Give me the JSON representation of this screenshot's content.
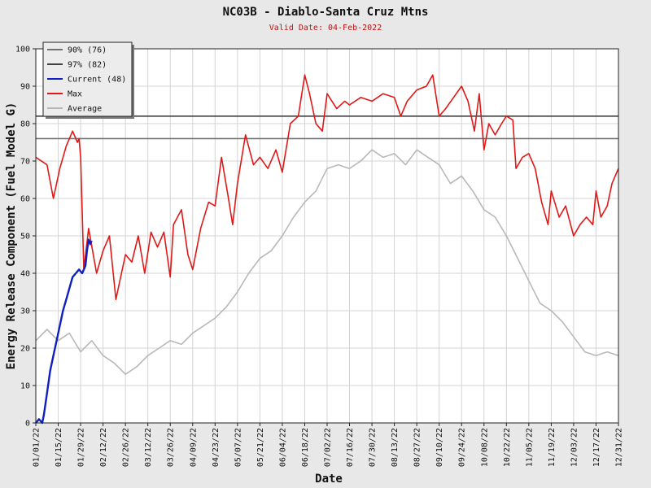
{
  "chart_data": {
    "type": "line",
    "title": "NC03B - Diablo-Santa Cruz Mtns",
    "subtitle": "Valid Date: 04-Feb-2022",
    "xlabel": "Date",
    "ylabel": "Energy Release Component (Fuel Model G)",
    "ylim": [
      0,
      100
    ],
    "xlim": [
      "01/01/22",
      "12/31/22"
    ],
    "y_ticks": [
      "0",
      "10",
      "20",
      "30",
      "40",
      "50",
      "60",
      "70",
      "80",
      "90",
      "100"
    ],
    "x_ticks": [
      "01/01/22",
      "01/15/22",
      "01/29/22",
      "02/12/22",
      "02/26/22",
      "03/12/22",
      "03/26/22",
      "04/09/22",
      "04/23/22",
      "05/07/22",
      "05/21/22",
      "06/04/22",
      "06/18/22",
      "07/02/22",
      "07/16/22",
      "07/30/22",
      "08/13/22",
      "08/27/22",
      "09/10/22",
      "09/24/22",
      "10/08/22",
      "10/22/22",
      "11/05/22",
      "11/19/22",
      "12/03/22",
      "12/17/22",
      "12/31/22"
    ],
    "grid": true,
    "legend_position": "top-left",
    "series": [
      {
        "name": "90% (76)",
        "color": "#707070",
        "style": "horizontal",
        "value": 76
      },
      {
        "name": "97% (82)",
        "color": "#404040",
        "style": "horizontal",
        "value": 82
      },
      {
        "name": "Current (48)",
        "color": "#1020c0",
        "style": "line",
        "x": [
          "01/01/22",
          "01/03/22",
          "01/05/22",
          "01/06/22",
          "01/08/22",
          "01/10/22",
          "01/12/22",
          "01/14/22",
          "01/16/22",
          "01/18/22",
          "01/20/22",
          "01/22/22",
          "01/24/22",
          "01/26/22",
          "01/28/22",
          "01/30/22",
          "02/01/22",
          "02/02/22",
          "02/03/22",
          "02/04/22"
        ],
        "y": [
          0,
          1,
          0,
          2,
          8,
          14,
          18,
          22,
          26,
          30,
          33,
          36,
          39,
          40,
          41,
          40,
          42,
          46,
          49,
          48
        ]
      },
      {
        "name": "Max",
        "color": "#e01818",
        "style": "line",
        "x": [
          "01/01/22",
          "01/08/22",
          "01/12/22",
          "01/16/22",
          "01/20/22",
          "01/24/22",
          "01/27/22",
          "01/28/22",
          "01/29/22",
          "01/31/22",
          "02/03/22",
          "02/08/22",
          "02/12/22",
          "02/16/22",
          "02/20/22",
          "02/26/22",
          "03/02/22",
          "03/06/22",
          "03/10/22",
          "03/14/22",
          "03/18/22",
          "03/22/22",
          "03/26/22",
          "03/28/22",
          "04/02/22",
          "04/06/22",
          "04/09/22",
          "04/14/22",
          "04/19/22",
          "04/23/22",
          "04/27/22",
          "05/01/22",
          "05/04/22",
          "05/07/22",
          "05/12/22",
          "05/17/22",
          "05/21/22",
          "05/26/22",
          "05/31/22",
          "06/04/22",
          "06/09/22",
          "06/14/22",
          "06/18/22",
          "06/21/22",
          "06/25/22",
          "06/29/22",
          "07/02/22",
          "07/08/22",
          "07/13/22",
          "07/16/22",
          "07/23/22",
          "07/30/22",
          "08/06/22",
          "08/13/22",
          "08/17/22",
          "08/21/22",
          "08/27/22",
          "09/02/22",
          "09/06/22",
          "09/10/22",
          "09/14/22",
          "09/19/22",
          "09/24/22",
          "09/28/22",
          "10/02/22",
          "10/05/22",
          "10/08/22",
          "10/11/22",
          "10/15/22",
          "10/19/22",
          "10/22/22",
          "10/26/22",
          "10/28/22",
          "11/01/22",
          "11/05/22",
          "11/09/22",
          "11/13/22",
          "11/17/22",
          "11/19/22",
          "11/24/22",
          "11/28/22",
          "12/03/22",
          "12/07/22",
          "12/11/22",
          "12/15/22",
          "12/17/22",
          "12/20/22",
          "12/24/22",
          "12/27/22",
          "12/31/22"
        ],
        "y": [
          71,
          69,
          60,
          68,
          74,
          78,
          75,
          76,
          71,
          41,
          52,
          40,
          46,
          50,
          33,
          45,
          43,
          50,
          40,
          51,
          47,
          51,
          39,
          53,
          57,
          45,
          41,
          52,
          59,
          58,
          71,
          61,
          53,
          64,
          77,
          69,
          71,
          68,
          73,
          67,
          80,
          82,
          93,
          88,
          80,
          78,
          88,
          84,
          86,
          85,
          87,
          86,
          88,
          87,
          82,
          86,
          89,
          90,
          93,
          82,
          84,
          87,
          90,
          86,
          78,
          88,
          73,
          80,
          77,
          80,
          82,
          81,
          68,
          71,
          72,
          68,
          59,
          53,
          62,
          55,
          58,
          50,
          53,
          55,
          53,
          62,
          55,
          58,
          64,
          68
        ]
      },
      {
        "name": "Average",
        "color": "#b8b8b8",
        "style": "line",
        "x": [
          "01/01/22",
          "01/08/22",
          "01/15/22",
          "01/22/22",
          "01/29/22",
          "02/05/22",
          "02/12/22",
          "02/19/22",
          "02/26/22",
          "03/05/22",
          "03/12/22",
          "03/19/22",
          "03/26/22",
          "04/02/22",
          "04/09/22",
          "04/16/22",
          "04/23/22",
          "04/30/22",
          "05/07/22",
          "05/14/22",
          "05/21/22",
          "05/28/22",
          "06/04/22",
          "06/11/22",
          "06/18/22",
          "06/25/22",
          "07/02/22",
          "07/09/22",
          "07/16/22",
          "07/23/22",
          "07/30/22",
          "08/06/22",
          "08/13/22",
          "08/20/22",
          "08/27/22",
          "09/03/22",
          "09/10/22",
          "09/17/22",
          "09/24/22",
          "10/01/22",
          "10/08/22",
          "10/15/22",
          "10/22/22",
          "10/29/22",
          "11/05/22",
          "11/12/22",
          "11/19/22",
          "11/26/22",
          "12/03/22",
          "12/10/22",
          "12/17/22",
          "12/24/22",
          "12/31/22"
        ],
        "y": [
          22,
          25,
          22,
          24,
          19,
          22,
          18,
          16,
          13,
          15,
          18,
          20,
          22,
          21,
          24,
          26,
          28,
          31,
          35,
          40,
          44,
          46,
          50,
          55,
          59,
          62,
          68,
          69,
          68,
          70,
          73,
          71,
          72,
          69,
          73,
          71,
          69,
          64,
          66,
          62,
          57,
          55,
          50,
          44,
          38,
          32,
          30,
          27,
          23,
          19,
          18,
          19,
          18
        ]
      }
    ]
  }
}
